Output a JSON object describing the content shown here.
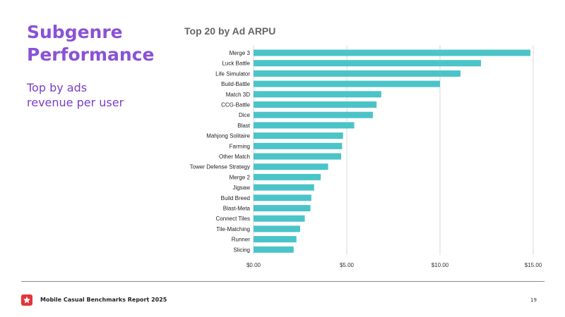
{
  "slide": {
    "title_line1": "Subgenre",
    "title_line2": "Performance",
    "subtitle_line1": "Top by ads",
    "subtitle_line2": "revenue per user"
  },
  "footer": {
    "report_title": "Mobile Casual Benchmarks Report 2025",
    "page_number": "19",
    "logo_icon": "star-icon",
    "logo_color": "#e2353a"
  },
  "colors": {
    "title": "#8a52d6",
    "bar": "#4bc4c8",
    "grid": "#d9d9d9"
  },
  "chart_data": {
    "type": "bar",
    "orientation": "horizontal",
    "title": "Top 20 by Ad ARPU",
    "xlabel": "",
    "ylabel": "",
    "xlim": [
      0,
      15
    ],
    "ticks": [
      0,
      5,
      10,
      15
    ],
    "tick_labels": [
      "$0.00",
      "$5.00",
      "$10.00",
      "$15.00"
    ],
    "grid": true,
    "categories": [
      "Merge 3",
      "Luck Battle",
      "Life Simulator",
      "Build-Battle",
      "Match 3D",
      "CCG-Battle",
      "Dice",
      "Blast",
      "Mahjong Solitaire",
      "Farming",
      "Other Match",
      "Tower Defense Strategy",
      "Merge 2",
      "Jigsaw",
      "Build Breed",
      "Blast-Meta",
      "Connect Tiles",
      "Tile-Matching",
      "Runner",
      "Slicing"
    ],
    "values": [
      14.85,
      12.2,
      11.1,
      10.0,
      6.85,
      6.6,
      6.4,
      5.4,
      4.8,
      4.75,
      4.7,
      4.0,
      3.6,
      3.25,
      3.1,
      3.05,
      2.75,
      2.5,
      2.3,
      2.15
    ]
  }
}
